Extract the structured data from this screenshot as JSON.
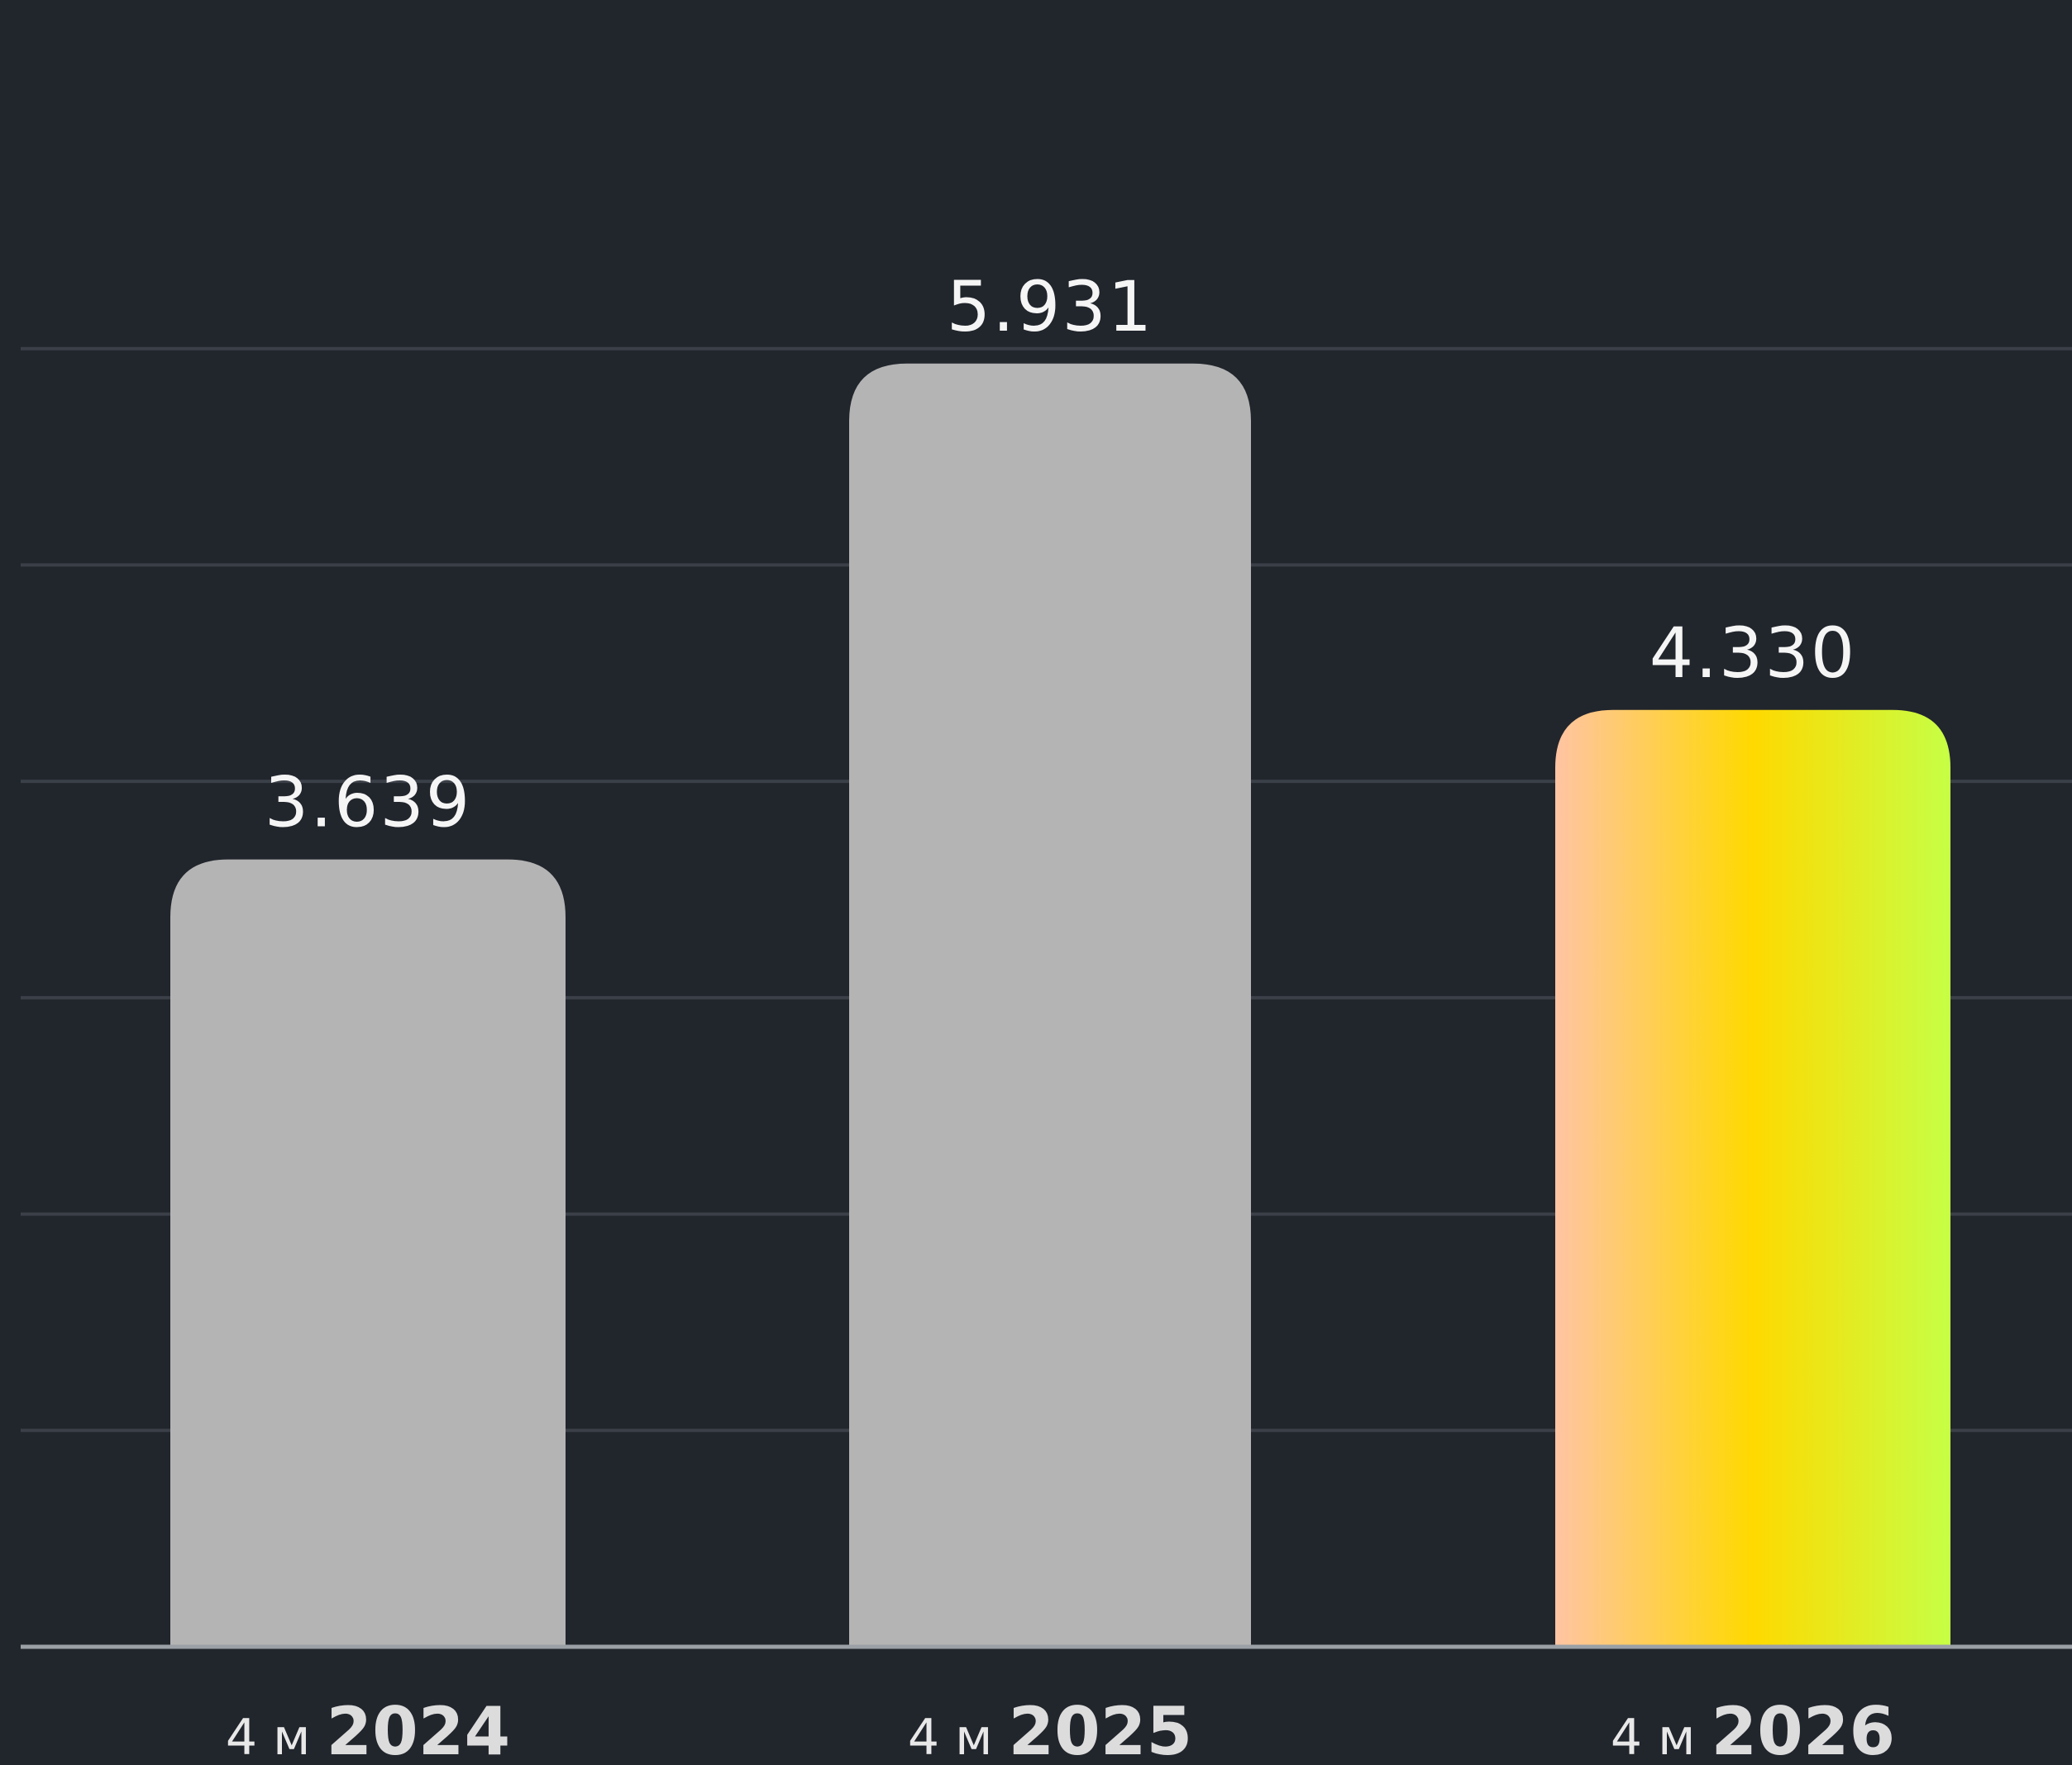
{
  "chart_data": {
    "type": "bar",
    "categories": [
      "4 м 2024",
      "4 м 2025",
      "4 м 2026"
    ],
    "category_parts": [
      {
        "prefix": "4 м",
        "year": "2024"
      },
      {
        "prefix": "4 м",
        "year": "2025"
      },
      {
        "prefix": "4 м",
        "year": "2026"
      }
    ],
    "values": [
      3639,
      5931,
      4330
    ],
    "value_labels": [
      "3.639",
      "5.931",
      "4.330"
    ],
    "ylim": [
      0,
      7000
    ],
    "grid": true,
    "legend": "none",
    "title": "",
    "xlabel": "",
    "ylabel": "",
    "bar_colors": [
      "#b4b4b4",
      "#b4b4b4",
      "gradient"
    ],
    "highlight_gradient": [
      "#ffc4a3",
      "#ffd900",
      "#c6ff45"
    ]
  },
  "colors": {
    "background": "#21252c",
    "grid": "#3b4048",
    "axis": "#9aa0a6",
    "label": "#f5f5f5"
  }
}
